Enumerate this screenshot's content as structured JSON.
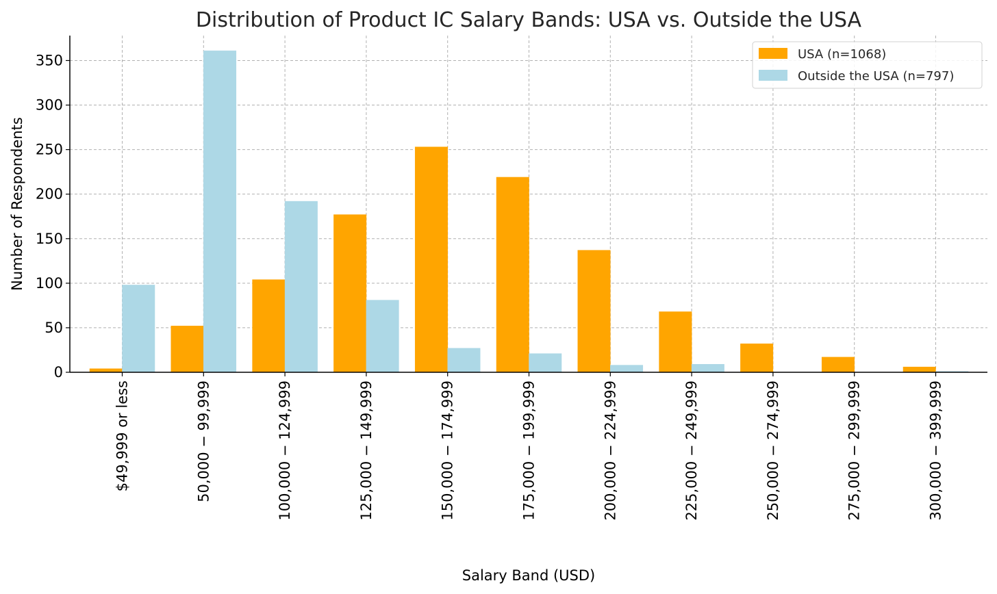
{
  "colors": {
    "usa": "#FFA500",
    "outside": "#ADD8E6"
  },
  "chart_data": {
    "type": "bar",
    "title": "Distribution of Product IC Salary Bands: USA vs. Outside the USA",
    "xlabel": "Salary Band (USD)",
    "ylabel": "Number of Respondents",
    "ylim": [
      0,
      378
    ],
    "yticks": [
      0,
      50,
      100,
      150,
      200,
      250,
      300,
      350
    ],
    "grid": true,
    "legend_position": "top-right",
    "categories": [
      "$49,999 or less",
      "50,000 − 99,999",
      "100,000 − 124,999",
      "125,000 − 149,999",
      "150,000 − 174,999",
      "175,000 − 199,999",
      "200,000 − 224,999",
      "225,000 − 249,999",
      "250,000 − 274,999",
      "275,000 − 299,999",
      "300,000 − 399,999"
    ],
    "series": [
      {
        "name": "USA (n=1068)",
        "values": [
          4,
          52,
          104,
          177,
          253,
          219,
          137,
          68,
          32,
          17,
          6
        ]
      },
      {
        "name": "Outside the USA (n=797)",
        "values": [
          98,
          361,
          192,
          81,
          27,
          21,
          8,
          9,
          0,
          0,
          1
        ]
      }
    ]
  }
}
